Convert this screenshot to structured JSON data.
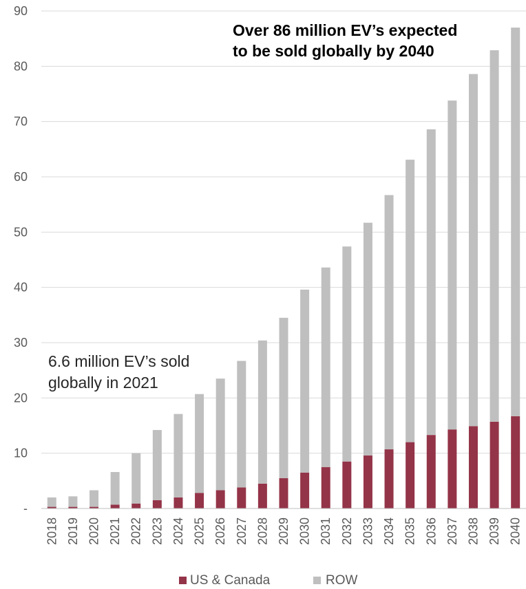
{
  "chart_data": {
    "type": "bar",
    "stacked": true,
    "categories": [
      "2018",
      "2019",
      "2020",
      "2021",
      "2022",
      "2023",
      "2024",
      "2025",
      "2026",
      "2027",
      "2028",
      "2029",
      "2030",
      "2031",
      "2032",
      "2033",
      "2034",
      "2035",
      "2036",
      "2037",
      "2038",
      "2039",
      "2040"
    ],
    "series": [
      {
        "name": "US & Canada",
        "color": "#943448",
        "values": [
          0.3,
          0.3,
          0.3,
          0.7,
          0.9,
          1.5,
          2.0,
          2.8,
          3.3,
          3.8,
          4.5,
          5.5,
          6.5,
          7.5,
          8.5,
          9.6,
          10.7,
          12.0,
          13.3,
          14.3,
          14.9,
          15.7,
          16.7
        ]
      },
      {
        "name": "ROW",
        "color": "#bfbfbf",
        "values": [
          1.7,
          1.9,
          3.0,
          5.9,
          9.1,
          12.7,
          15.1,
          17.9,
          20.2,
          22.9,
          25.9,
          29.0,
          33.1,
          36.1,
          38.9,
          42.1,
          46.0,
          51.1,
          55.3,
          59.5,
          63.7,
          67.2,
          70.3
        ]
      }
    ],
    "ylim": [
      0,
      90
    ],
    "yticks": [
      {
        "value": 0,
        "label": "-"
      },
      {
        "value": 10,
        "label": "10"
      },
      {
        "value": 20,
        "label": "20"
      },
      {
        "value": 30,
        "label": "30"
      },
      {
        "value": 40,
        "label": "40"
      },
      {
        "value": 50,
        "label": "50"
      },
      {
        "value": 60,
        "label": "60"
      },
      {
        "value": 70,
        "label": "70"
      },
      {
        "value": 80,
        "label": "80"
      },
      {
        "value": 90,
        "label": "90"
      }
    ],
    "grid": true,
    "legend_position": "bottom",
    "annotations": [
      {
        "text": "Over 86 million EV’s expected",
        "style": "bold"
      },
      {
        "text": "to be sold globally by 2040",
        "style": "bold"
      },
      {
        "text": "6.6 million EV’s sold",
        "style": "normal"
      },
      {
        "text": "globally in 2021",
        "style": "normal"
      }
    ]
  }
}
